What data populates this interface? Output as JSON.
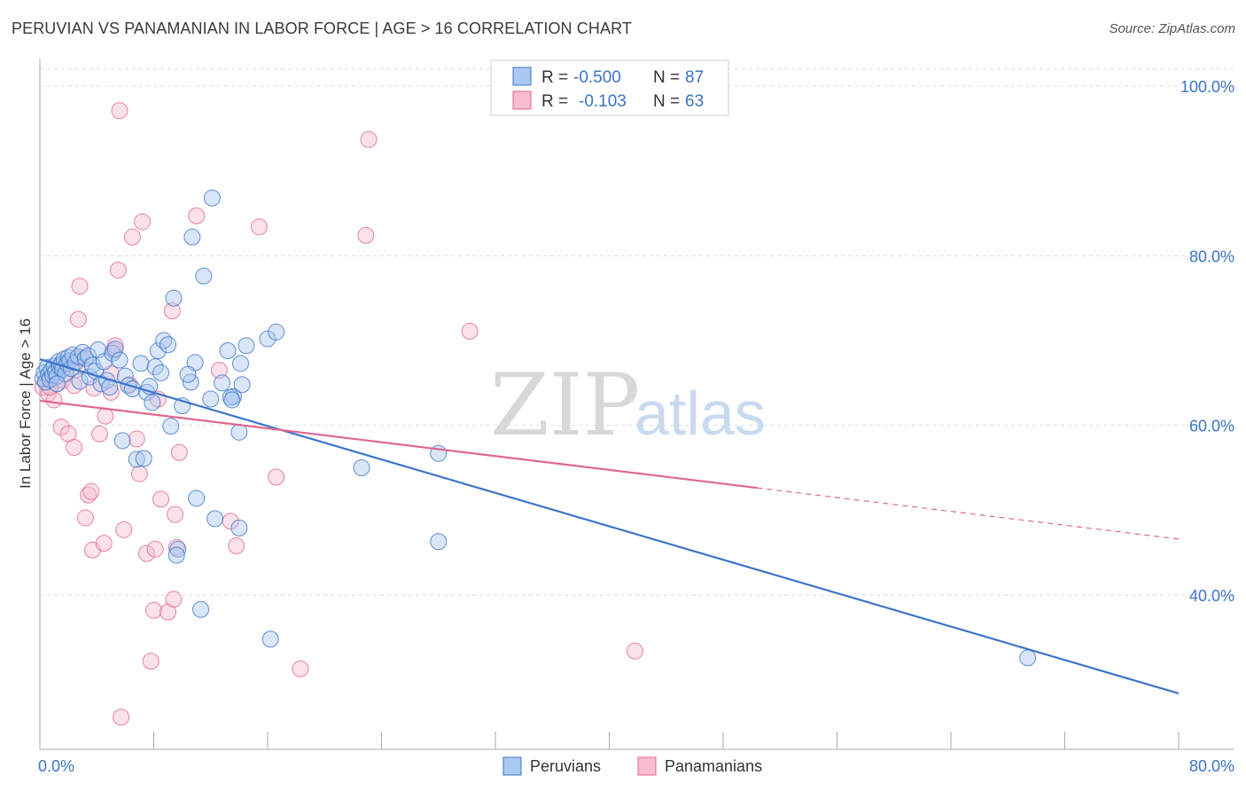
{
  "header": {
    "title": "PERUVIAN VS PANAMANIAN IN LABOR FORCE | AGE > 16 CORRELATION CHART",
    "source": "Source: ZipAtlas.com"
  },
  "colors": {
    "blue": "#3a74c9",
    "blue_fill": "#aac8f0",
    "pink": "#e0668f",
    "pink_fill": "#f7bcd0",
    "grid": "#dddddd"
  },
  "legend": {
    "rows": [
      {
        "r_label": "R =",
        "r_value": "-0.500",
        "n_label": "N =",
        "n_value": "87"
      },
      {
        "r_label": "R =",
        "r_value": "-0.103",
        "n_label": "N =",
        "n_value": "63"
      }
    ]
  },
  "watermark": {
    "zip": "ZIP",
    "atlas": "atlas"
  },
  "chart_data": {
    "type": "scatter",
    "title": "PERUVIAN VS PANAMANIAN IN LABOR FORCE | AGE > 16 CORRELATION CHART",
    "xlabel": "",
    "ylabel": "In Labor Force | Age > 16",
    "xlim": [
      0,
      80
    ],
    "ylim": [
      20,
      100
    ],
    "x_tick_labels": [
      "0.0%",
      "80.0%"
    ],
    "y_ticks": [
      40,
      60,
      80,
      100
    ],
    "y_tick_labels": [
      "40.0%",
      "60.0%",
      "80.0%",
      "100.0%"
    ],
    "grid": true,
    "series": [
      {
        "name": "Peruvians",
        "color": "#3a74c9",
        "trend": {
          "x": [
            0,
            80
          ],
          "y": [
            67.8,
            28.4
          ],
          "dashed_from": null
        },
        "points": [
          [
            0.2,
            65.5
          ],
          [
            0.3,
            66.2
          ],
          [
            0.4,
            65.1
          ],
          [
            0.5,
            66.8
          ],
          [
            0.6,
            66.0
          ],
          [
            0.7,
            65.4
          ],
          [
            0.8,
            66.5
          ],
          [
            0.9,
            65.9
          ],
          [
            1.0,
            67.0
          ],
          [
            1.1,
            66.3
          ],
          [
            1.2,
            65.8
          ],
          [
            1.3,
            67.5
          ],
          [
            1.4,
            66.9
          ],
          [
            1.5,
            67.2
          ],
          [
            1.6,
            66.6
          ],
          [
            1.7,
            67.8
          ],
          [
            1.8,
            66.1
          ],
          [
            1.9,
            67.3
          ],
          [
            2.0,
            68.0
          ],
          [
            2.1,
            67.6
          ],
          [
            2.2,
            66.7
          ],
          [
            2.3,
            68.3
          ],
          [
            2.5,
            67.4
          ],
          [
            2.7,
            68.1
          ],
          [
            2.8,
            65.2
          ],
          [
            3.0,
            68.6
          ],
          [
            3.2,
            67.9
          ],
          [
            3.4,
            68.2
          ],
          [
            3.5,
            65.7
          ],
          [
            3.7,
            67.1
          ],
          [
            3.9,
            66.4
          ],
          [
            4.1,
            68.9
          ],
          [
            4.3,
            64.9
          ],
          [
            4.5,
            67.5
          ],
          [
            4.7,
            65.3
          ],
          [
            4.9,
            64.5
          ],
          [
            5.1,
            68.5
          ],
          [
            5.3,
            69.0
          ],
          [
            5.6,
            67.7
          ],
          [
            5.8,
            58.2
          ],
          [
            6.0,
            65.8
          ],
          [
            6.2,
            64.7
          ],
          [
            6.5,
            64.3
          ],
          [
            6.8,
            56.0
          ],
          [
            7.1,
            67.3
          ],
          [
            7.3,
            56.1
          ],
          [
            7.5,
            63.9
          ],
          [
            7.7,
            64.6
          ],
          [
            7.9,
            62.7
          ],
          [
            8.1,
            66.9
          ],
          [
            8.3,
            68.8
          ],
          [
            8.5,
            66.2
          ],
          [
            8.7,
            70.0
          ],
          [
            9.0,
            69.5
          ],
          [
            9.2,
            59.9
          ],
          [
            9.4,
            75.0
          ],
          [
            9.7,
            45.4
          ],
          [
            9.6,
            44.7
          ],
          [
            10.0,
            62.3
          ],
          [
            10.7,
            82.2
          ],
          [
            10.6,
            65.1
          ],
          [
            10.9,
            67.4
          ],
          [
            10.4,
            66.0
          ],
          [
            11.0,
            51.4
          ],
          [
            11.3,
            38.3
          ],
          [
            11.5,
            77.6
          ],
          [
            12.0,
            63.1
          ],
          [
            12.3,
            49.0
          ],
          [
            12.8,
            65.0
          ],
          [
            13.2,
            68.8
          ],
          [
            13.6,
            63.4
          ],
          [
            13.4,
            63.3
          ],
          [
            12.1,
            86.8
          ],
          [
            13.5,
            63.0
          ],
          [
            14.0,
            47.9
          ],
          [
            14.0,
            59.2
          ],
          [
            14.1,
            67.3
          ],
          [
            14.2,
            64.8
          ],
          [
            14.5,
            69.4
          ],
          [
            16.0,
            70.2
          ],
          [
            16.6,
            71.0
          ],
          [
            16.2,
            34.8
          ],
          [
            22.6,
            55.0
          ],
          [
            28.0,
            56.7
          ],
          [
            28.0,
            46.3
          ],
          [
            69.4,
            32.6
          ],
          [
            1.2,
            64.9
          ]
        ]
      },
      {
        "name": "Panamanians",
        "color": "#e0668f",
        "trend": {
          "x": [
            0,
            80
          ],
          "y": [
            62.9,
            46.6
          ],
          "dashed_from": 50.4
        },
        "points": [
          [
            0.2,
            64.5
          ],
          [
            0.4,
            65.2
          ],
          [
            0.6,
            63.8
          ],
          [
            0.8,
            66.0
          ],
          [
            1.0,
            65.5
          ],
          [
            1.2,
            64.9
          ],
          [
            1.4,
            67.0
          ],
          [
            1.6,
            65.3
          ],
          [
            1.0,
            63.0
          ],
          [
            1.5,
            59.8
          ],
          [
            2.0,
            59.0
          ],
          [
            2.4,
            57.4
          ],
          [
            2.4,
            64.7
          ],
          [
            2.6,
            66.6
          ],
          [
            2.7,
            72.5
          ],
          [
            2.8,
            76.4
          ],
          [
            3.2,
            49.1
          ],
          [
            3.4,
            51.8
          ],
          [
            3.6,
            52.2
          ],
          [
            3.7,
            45.3
          ],
          [
            3.8,
            64.4
          ],
          [
            4.2,
            59.0
          ],
          [
            4.5,
            46.1
          ],
          [
            4.6,
            61.1
          ],
          [
            5.0,
            63.9
          ],
          [
            5.0,
            66.1
          ],
          [
            5.2,
            68.8
          ],
          [
            5.3,
            69.4
          ],
          [
            5.5,
            78.3
          ],
          [
            5.6,
            97.1
          ],
          [
            5.7,
            25.6
          ],
          [
            5.9,
            47.7
          ],
          [
            6.3,
            64.8
          ],
          [
            6.5,
            82.2
          ],
          [
            6.8,
            58.4
          ],
          [
            7.0,
            54.3
          ],
          [
            7.2,
            84.0
          ],
          [
            7.5,
            44.9
          ],
          [
            7.8,
            32.2
          ],
          [
            8.0,
            38.2
          ],
          [
            8.1,
            45.4
          ],
          [
            8.3,
            63.1
          ],
          [
            8.5,
            51.3
          ],
          [
            9.0,
            38.0
          ],
          [
            9.3,
            73.5
          ],
          [
            9.4,
            39.5
          ],
          [
            9.5,
            49.5
          ],
          [
            9.6,
            45.6
          ],
          [
            9.8,
            56.8
          ],
          [
            11.0,
            84.7
          ],
          [
            12.6,
            66.5
          ],
          [
            13.4,
            48.7
          ],
          [
            13.8,
            45.8
          ],
          [
            15.4,
            83.4
          ],
          [
            16.6,
            53.9
          ],
          [
            18.3,
            31.3
          ],
          [
            22.9,
            82.4
          ],
          [
            23.1,
            93.7
          ],
          [
            30.2,
            71.1
          ],
          [
            41.8,
            33.4
          ],
          [
            1.1,
            66.4
          ],
          [
            2.9,
            67.9
          ],
          [
            0.7,
            64.5
          ]
        ]
      }
    ]
  },
  "bottom_legend": {
    "items": [
      {
        "label": "Peruvians"
      },
      {
        "label": "Panamanians"
      }
    ]
  }
}
